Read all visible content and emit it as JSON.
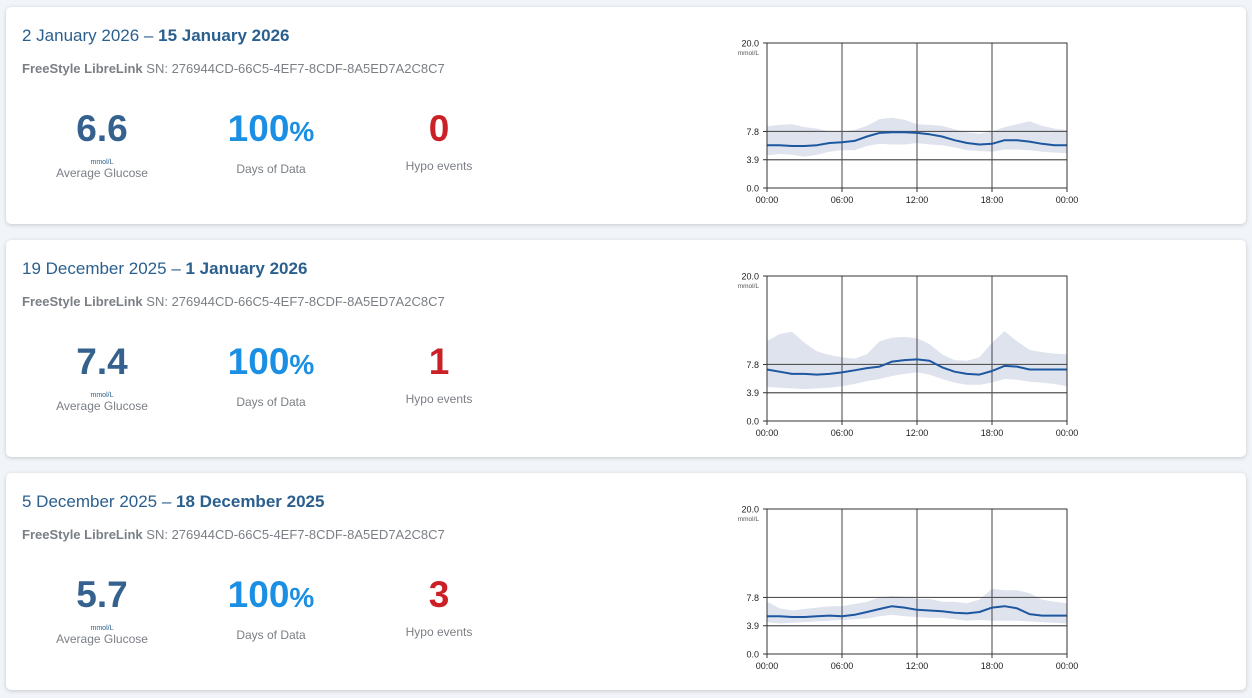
{
  "reports": [
    {
      "date_start": "2 January 2026",
      "separator": " – ",
      "date_end": "15 January 2026",
      "device_name": "FreeStyle LibreLink",
      "serial": "SN: 276944CD-66C5-4EF7-8CDF-8A5ED7A2C8C7",
      "avg_glucose": "6.6",
      "avg_glucose_unit": "mmol/L",
      "avg_glucose_label": "Average Glucose",
      "days_of_data": "100",
      "days_unit": "%",
      "days_label": "Days of Data",
      "hypo_events": "0",
      "hypo_label": "Hypo events",
      "chart_data": {
        "type": "area",
        "y_unit_label": "mmol/L",
        "ylim": [
          0,
          20
        ],
        "y_ticks": [
          "20.0",
          "7.8",
          "3.9",
          "0.0"
        ],
        "y_tick_values": [
          20,
          7.8,
          3.9,
          0
        ],
        "target_lines": [
          7.8,
          3.9
        ],
        "x_tick_labels": [
          "00:00",
          "06:00",
          "12:00",
          "18:00",
          "00:00"
        ],
        "x_hours": [
          0,
          1,
          2,
          3,
          4,
          5,
          6,
          7,
          8,
          9,
          10,
          11,
          12,
          13,
          14,
          15,
          16,
          17,
          18,
          19,
          20,
          21,
          22,
          23,
          24
        ],
        "median": [
          5.9,
          5.9,
          5.8,
          5.8,
          5.9,
          6.2,
          6.3,
          6.5,
          7.1,
          7.6,
          7.7,
          7.7,
          7.6,
          7.4,
          7.1,
          6.6,
          6.2,
          6.0,
          6.1,
          6.6,
          6.6,
          6.4,
          6.1,
          5.9,
          5.9
        ],
        "band_upper": [
          8.5,
          8.7,
          8.8,
          8.4,
          8.2,
          7.8,
          7.8,
          8.0,
          8.6,
          9.5,
          9.7,
          9.4,
          8.8,
          8.7,
          8.6,
          8.1,
          7.7,
          7.5,
          7.8,
          8.4,
          8.8,
          9.2,
          8.6,
          8.2,
          8.0
        ],
        "band_lower": [
          4.5,
          4.7,
          4.6,
          4.3,
          4.6,
          5.0,
          5.2,
          5.2,
          5.8,
          6.1,
          6.0,
          6.0,
          6.2,
          6.0,
          5.9,
          5.6,
          5.2,
          5.1,
          5.0,
          5.3,
          5.3,
          5.2,
          5.0,
          4.9,
          4.8
        ]
      }
    },
    {
      "date_start": "19 December 2025",
      "separator": " – ",
      "date_end": "1 January 2026",
      "device_name": "FreeStyle LibreLink",
      "serial": "SN: 276944CD-66C5-4EF7-8CDF-8A5ED7A2C8C7",
      "avg_glucose": "7.4",
      "avg_glucose_unit": "mmol/L",
      "avg_glucose_label": "Average Glucose",
      "days_of_data": "100",
      "days_unit": "%",
      "days_label": "Days of Data",
      "hypo_events": "1",
      "hypo_label": "Hypo events",
      "chart_data": {
        "type": "area",
        "y_unit_label": "mmol/L",
        "ylim": [
          0,
          20
        ],
        "y_ticks": [
          "20.0",
          "7.8",
          "3.9",
          "0.0"
        ],
        "y_tick_values": [
          20,
          7.8,
          3.9,
          0
        ],
        "target_lines": [
          7.8,
          3.9
        ],
        "x_tick_labels": [
          "00:00",
          "06:00",
          "12:00",
          "18:00",
          "00:00"
        ],
        "x_hours": [
          0,
          1,
          2,
          3,
          4,
          5,
          6,
          7,
          8,
          9,
          10,
          11,
          12,
          13,
          14,
          15,
          16,
          17,
          18,
          19,
          20,
          21,
          22,
          23,
          24
        ],
        "median": [
          7.1,
          6.8,
          6.5,
          6.5,
          6.4,
          6.5,
          6.7,
          7.0,
          7.3,
          7.5,
          8.2,
          8.4,
          8.5,
          8.3,
          7.4,
          6.8,
          6.5,
          6.4,
          6.9,
          7.6,
          7.5,
          7.1,
          7.1,
          7.1,
          7.1
        ],
        "band_upper": [
          11.0,
          12.0,
          12.3,
          10.8,
          9.6,
          9.1,
          8.8,
          8.6,
          9.2,
          11.0,
          11.5,
          11.6,
          11.4,
          10.6,
          9.2,
          8.4,
          8.3,
          8.8,
          10.8,
          12.4,
          11.0,
          9.8,
          9.5,
          9.3,
          9.2
        ],
        "band_lower": [
          4.7,
          4.6,
          4.5,
          4.4,
          4.5,
          4.6,
          4.8,
          5.1,
          5.5,
          5.8,
          6.2,
          6.5,
          6.7,
          6.4,
          5.8,
          5.3,
          5.0,
          5.0,
          5.3,
          5.8,
          5.7,
          5.4,
          5.3,
          5.1,
          4.8
        ]
      }
    },
    {
      "date_start": "5 December 2025",
      "separator": " – ",
      "date_end": "18 December 2025",
      "device_name": "FreeStyle LibreLink",
      "serial": "SN: 276944CD-66C5-4EF7-8CDF-8A5ED7A2C8C7",
      "avg_glucose": "5.7",
      "avg_glucose_unit": "mmol/L",
      "avg_glucose_label": "Average Glucose",
      "days_of_data": "100",
      "days_unit": "%",
      "days_label": "Days of Data",
      "hypo_events": "3",
      "hypo_label": "Hypo events",
      "chart_data": {
        "type": "area",
        "y_unit_label": "mmol/L",
        "ylim": [
          0,
          20
        ],
        "y_ticks": [
          "20.0",
          "7.8",
          "3.9",
          "0.0"
        ],
        "y_tick_values": [
          20,
          7.8,
          3.9,
          0
        ],
        "target_lines": [
          7.8,
          3.9
        ],
        "x_tick_labels": [
          "00:00",
          "06:00",
          "12:00",
          "18:00",
          "00:00"
        ],
        "x_hours": [
          0,
          1,
          2,
          3,
          4,
          5,
          6,
          7,
          8,
          9,
          10,
          11,
          12,
          13,
          14,
          15,
          16,
          17,
          18,
          19,
          20,
          21,
          22,
          23,
          24
        ],
        "median": [
          5.2,
          5.2,
          5.1,
          5.1,
          5.2,
          5.3,
          5.2,
          5.4,
          5.8,
          6.2,
          6.6,
          6.4,
          6.1,
          6.0,
          5.9,
          5.7,
          5.6,
          5.8,
          6.4,
          6.6,
          6.3,
          5.5,
          5.3,
          5.3,
          5.3
        ],
        "band_upper": [
          7.2,
          6.3,
          6.0,
          6.2,
          6.4,
          6.6,
          6.6,
          6.9,
          7.2,
          7.8,
          8.0,
          7.9,
          7.6,
          7.6,
          7.2,
          7.2,
          7.0,
          7.5,
          9.0,
          8.8,
          8.8,
          8.4,
          7.5,
          7.2,
          7.0
        ],
        "band_lower": [
          4.4,
          4.2,
          4.3,
          4.4,
          4.5,
          4.6,
          4.7,
          4.8,
          4.9,
          5.2,
          5.4,
          5.2,
          5.1,
          5.0,
          5.0,
          4.8,
          4.6,
          4.7,
          4.6,
          4.6,
          4.6,
          4.5,
          4.4,
          4.3,
          4.2
        ]
      }
    }
  ]
}
